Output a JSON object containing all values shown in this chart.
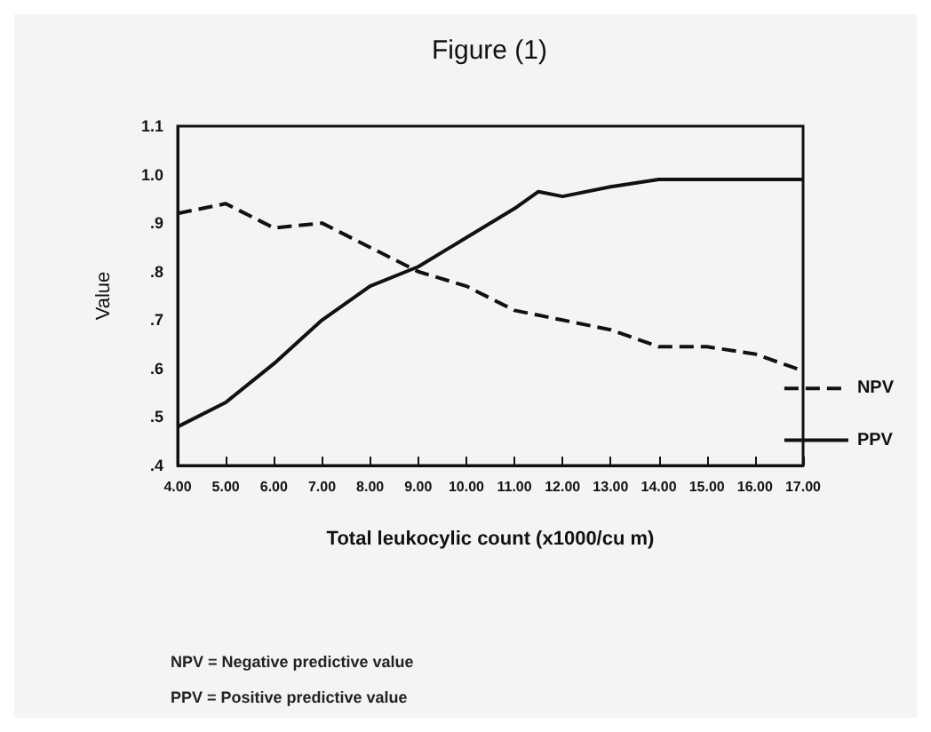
{
  "chart_data": {
    "type": "line",
    "title": "Figure (1)",
    "xlabel": "Total leukocylic count (x1000/cu m)",
    "ylabel": "Value",
    "annotations": [
      "NPV = Negative predictive value",
      "PPV = Positive predictive value"
    ],
    "xlim": [
      4,
      17
    ],
    "xticks": [
      {
        "value": 4,
        "label": "4.00"
      },
      {
        "value": 5,
        "label": "5.00"
      },
      {
        "value": 6,
        "label": "6.00"
      },
      {
        "value": 7,
        "label": "7.00"
      },
      {
        "value": 8,
        "label": "8.00"
      },
      {
        "value": 9,
        "label": "9.00"
      },
      {
        "value": 10,
        "label": "10.00"
      },
      {
        "value": 11,
        "label": "11.00"
      },
      {
        "value": 12,
        "label": "12.00"
      },
      {
        "value": 13,
        "label": "13.00"
      },
      {
        "value": 14,
        "label": "14.00"
      },
      {
        "value": 15,
        "label": "15.00"
      },
      {
        "value": 16,
        "label": "16.00"
      },
      {
        "value": 17,
        "label": "17.00"
      }
    ],
    "ylim": [
      0.4,
      1.1
    ],
    "yticks": [
      {
        "value": 0.4,
        "label": ".4"
      },
      {
        "value": 0.5,
        "label": ".5"
      },
      {
        "value": 0.6,
        "label": ".6"
      },
      {
        "value": 0.7,
        "label": ".7"
      },
      {
        "value": 0.8,
        "label": ".8"
      },
      {
        "value": 0.9,
        "label": ".9"
      },
      {
        "value": 1.0,
        "label": "1.0"
      },
      {
        "value": 1.1,
        "label": "1.1"
      }
    ],
    "x": [
      4,
      5,
      6,
      7,
      8,
      9,
      10,
      11,
      11.5,
      12,
      13,
      14,
      15,
      16,
      17
    ],
    "series": [
      {
        "name": "NPV",
        "color": "#111111",
        "line_style": "dashed",
        "values": [
          0.92,
          0.94,
          0.89,
          0.9,
          0.85,
          0.8,
          0.77,
          0.72,
          0.71,
          0.7,
          0.68,
          0.645,
          0.645,
          0.63,
          0.595
        ]
      },
      {
        "name": "PPV",
        "color": "#111111",
        "line_style": "solid",
        "values": [
          0.48,
          0.53,
          0.61,
          0.7,
          0.77,
          0.81,
          0.87,
          0.93,
          0.965,
          0.955,
          0.975,
          0.99,
          0.99,
          0.99,
          0.99
        ]
      }
    ],
    "legend": "right",
    "grid": false,
    "marker": "none"
  }
}
